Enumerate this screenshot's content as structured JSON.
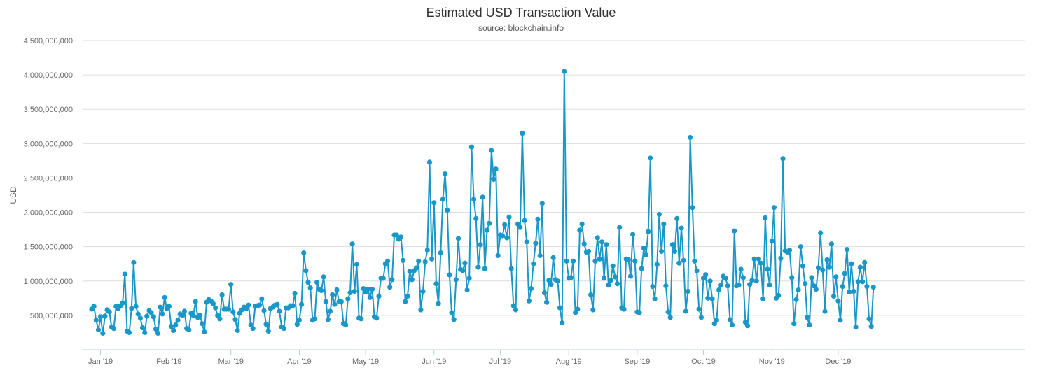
{
  "chart_data": {
    "type": "line",
    "title": "Estimated USD Transaction Value",
    "subtitle": "source: blockchain.info",
    "xlabel": "",
    "ylabel": "USD",
    "ylim": [
      0,
      4500000000
    ],
    "yticks": [
      500000000,
      1000000000,
      1500000000,
      2000000000,
      2500000000,
      3000000000,
      3500000000,
      4000000000,
      4500000000
    ],
    "ytick_labels": [
      "500,000,000",
      "1,000,000,000",
      "1,500,000,000",
      "2,000,000,000",
      "2,500,000,000",
      "3,000,000,000",
      "3,500,000,000",
      "4,000,000,000",
      "4,500,000,000"
    ],
    "xtick_labels": [
      "Jan '19",
      "Feb '19",
      "Mar '19",
      "Apr '19",
      "May '19",
      "Jun '19",
      "Jul '19",
      "Aug '19",
      "Sep '19",
      "Oct '19",
      "Nov '19",
      "Dec '19"
    ],
    "xtick_days": [
      4,
      35,
      63,
      94,
      124,
      155,
      185,
      216,
      247,
      277,
      308,
      338
    ],
    "x_start": "2019-01-01",
    "color": "#1a97c8",
    "series": [
      {
        "name": "USD",
        "values": [
          590,
          630,
          430,
          290,
          480,
          240,
          490,
          580,
          550,
          330,
          310,
          630,
          600,
          640,
          680,
          1100,
          270,
          250,
          600,
          1270,
          630,
          520,
          460,
          320,
          250,
          490,
          570,
          540,
          480,
          300,
          240,
          620,
          520,
          760,
          600,
          630,
          340,
          280,
          360,
          430,
          520,
          500,
          560,
          310,
          290,
          530,
          500,
          700,
          470,
          500,
          380,
          260,
          690,
          730,
          710,
          670,
          610,
          500,
          450,
          800,
          590,
          590,
          590,
          950,
          550,
          440,
          280,
          530,
          580,
          620,
          600,
          650,
          360,
          310,
          630,
          640,
          650,
          740,
          570,
          370,
          270,
          600,
          620,
          650,
          660,
          560,
          330,
          310,
          610,
          610,
          640,
          640,
          820,
          370,
          430,
          660,
          1410,
          1150,
          980,
          900,
          430,
          450,
          980,
          880,
          860,
          1060,
          700,
          440,
          560,
          800,
          660,
          870,
          700,
          700,
          380,
          360,
          740,
          830,
          1540,
          850,
          1240,
          460,
          450,
          890,
          840,
          880,
          760,
          880,
          480,
          460,
          780,
          1040,
          1040,
          1250,
          1290,
          910,
          1020,
          1670,
          1670,
          1610,
          1640,
          1300,
          700,
          780,
          1140,
          1020,
          1150,
          1190,
          1290,
          580,
          850,
          1280,
          1450,
          2730,
          1320,
          2140,
          960,
          670,
          1410,
          2190,
          2560,
          2030,
          1090,
          540,
          440,
          1020,
          1620,
          1170,
          1150,
          1260,
          870,
          1040,
          2950,
          2190,
          1910,
          1200,
          1530,
          2220,
          1180,
          1740,
          1840,
          2900,
          2480,
          2630,
          1370,
          1670,
          1660,
          1820,
          1630,
          1930,
          1180,
          640,
          580,
          1830,
          1780,
          3150,
          1880,
          1570,
          710,
          890,
          1250,
          1550,
          1900,
          1370,
          2130,
          830,
          690,
          1010,
          950,
          1340,
          1020,
          1000,
          610,
          390,
          4050,
          1290,
          1040,
          1050,
          1290,
          540,
          590,
          1740,
          1830,
          1540,
          1420,
          1430,
          800,
          580,
          1290,
          1630,
          1320,
          1570,
          1040,
          1530,
          940,
          1010,
          1220,
          1060,
          960,
          1780,
          610,
          590,
          1320,
          1310,
          1070,
          1680,
          1290,
          550,
          540,
          1180,
          1480,
          1380,
          1720,
          2790,
          920,
          740,
          1240,
          1970,
          1430,
          1830,
          930,
          550,
          470,
          1530,
          1430,
          1910,
          1260,
          1770,
          1300,
          560,
          850,
          3090,
          2070,
          1290,
          1150,
          590,
          470,
          1040,
          1090,
          750,
          1000,
          740,
          380,
          430,
          870,
          940,
          1070,
          1040,
          930,
          440,
          360,
          1730,
          930,
          940,
          1170,
          1050,
          400,
          350,
          950,
          1010,
          1320,
          1000,
          1320,
          1260,
          740,
          1920,
          1170,
          940,
          1580,
          2070,
          750,
          790,
          1330,
          2780,
          1440,
          1420,
          1450,
          1050,
          380,
          730,
          870,
          1500,
          1220,
          960,
          470,
          360,
          1050,
          930,
          880,
          1190,
          1700,
          1160,
          560,
          1310,
          1200,
          1540,
          780,
          1060,
          710,
          430,
          920,
          1110,
          1460,
          840,
          1250,
          850,
          330,
          990,
          1200,
          990,
          1270,
          920,
          450,
          340,
          910
        ]
      }
    ]
  }
}
